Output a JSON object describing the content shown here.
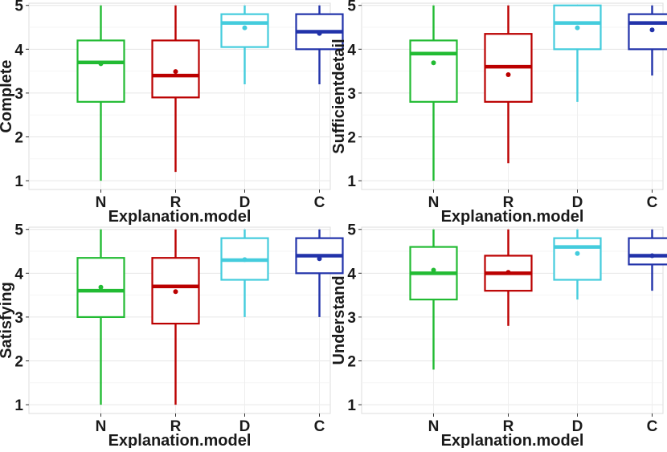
{
  "chart_data": [
    {
      "type": "box",
      "title": "",
      "xlabel": "Explanation.model",
      "ylabel": "Complete",
      "ylim": [
        0.8,
        5.05
      ],
      "yticks": [
        1,
        2,
        3,
        4,
        5
      ],
      "grid": true,
      "categories": [
        "N",
        "R",
        "D",
        "C"
      ],
      "colors": [
        "#22bb33",
        "#bb0000",
        "#44ccdd",
        "#2233aa"
      ],
      "boxes": [
        {
          "whisker_low": 1.0,
          "q1": 2.8,
          "median": 3.7,
          "q3": 4.2,
          "whisker_high": 5.0,
          "mean": 3.67
        },
        {
          "whisker_low": 1.2,
          "q1": 2.9,
          "median": 3.4,
          "q3": 4.2,
          "whisker_high": 5.0,
          "mean": 3.49
        },
        {
          "whisker_low": 3.2,
          "q1": 4.05,
          "median": 4.6,
          "q3": 4.8,
          "whisker_high": 5.0,
          "mean": 4.49
        },
        {
          "whisker_low": 3.2,
          "q1": 4.0,
          "median": 4.4,
          "q3": 4.8,
          "whisker_high": 5.0,
          "mean": 4.36
        }
      ]
    },
    {
      "type": "box",
      "title": "",
      "xlabel": "Explanation.model",
      "ylabel": "Sufficientdetail",
      "ylim": [
        0.8,
        5.05
      ],
      "yticks": [
        1,
        2,
        3,
        4,
        5
      ],
      "grid": true,
      "categories": [
        "N",
        "R",
        "D",
        "C"
      ],
      "colors": [
        "#22bb33",
        "#bb0000",
        "#44ccdd",
        "#2233aa"
      ],
      "boxes": [
        {
          "whisker_low": 1.0,
          "q1": 2.8,
          "median": 3.9,
          "q3": 4.2,
          "whisker_high": 5.0,
          "mean": 3.69
        },
        {
          "whisker_low": 1.4,
          "q1": 2.8,
          "median": 3.6,
          "q3": 4.35,
          "whisker_high": 5.0,
          "mean": 3.42
        },
        {
          "whisker_low": 2.8,
          "q1": 4.0,
          "median": 4.6,
          "q3": 5.0,
          "whisker_high": 5.0,
          "mean": 4.49
        },
        {
          "whisker_low": 3.4,
          "q1": 4.0,
          "median": 4.6,
          "q3": 4.8,
          "whisker_high": 5.0,
          "mean": 4.44
        }
      ]
    },
    {
      "type": "box",
      "title": "",
      "xlabel": "Explanation.model",
      "ylabel": "Satisfying",
      "ylim": [
        0.8,
        5.05
      ],
      "yticks": [
        1,
        2,
        3,
        4,
        5
      ],
      "grid": true,
      "categories": [
        "N",
        "R",
        "D",
        "C"
      ],
      "colors": [
        "#22bb33",
        "#bb0000",
        "#44ccdd",
        "#2233aa"
      ],
      "boxes": [
        {
          "whisker_low": 1.0,
          "q1": 3.0,
          "median": 3.6,
          "q3": 4.35,
          "whisker_high": 5.0,
          "mean": 3.68
        },
        {
          "whisker_low": 1.0,
          "q1": 2.85,
          "median": 3.7,
          "q3": 4.35,
          "whisker_high": 5.0,
          "mean": 3.58
        },
        {
          "whisker_low": 3.0,
          "q1": 3.85,
          "median": 4.3,
          "q3": 4.8,
          "whisker_high": 5.0,
          "mean": 4.31
        },
        {
          "whisker_low": 3.0,
          "q1": 4.0,
          "median": 4.4,
          "q3": 4.8,
          "whisker_high": 5.0,
          "mean": 4.33
        }
      ]
    },
    {
      "type": "box",
      "title": "",
      "xlabel": "Explanation.model",
      "ylabel": "Understand",
      "ylim": [
        0.8,
        5.05
      ],
      "yticks": [
        1,
        2,
        3,
        4,
        5
      ],
      "grid": true,
      "categories": [
        "N",
        "R",
        "D",
        "C"
      ],
      "colors": [
        "#22bb33",
        "#bb0000",
        "#44ccdd",
        "#2233aa"
      ],
      "boxes": [
        {
          "whisker_low": 1.8,
          "q1": 3.4,
          "median": 4.0,
          "q3": 4.6,
          "whisker_high": 5.0,
          "mean": 4.07
        },
        {
          "whisker_low": 2.8,
          "q1": 3.6,
          "median": 4.0,
          "q3": 4.4,
          "whisker_high": 5.0,
          "mean": 4.02
        },
        {
          "whisker_low": 3.4,
          "q1": 3.85,
          "median": 4.6,
          "q3": 4.8,
          "whisker_high": 5.0,
          "mean": 4.45
        },
        {
          "whisker_low": 3.6,
          "q1": 4.2,
          "median": 4.4,
          "q3": 4.8,
          "whisker_high": 5.0,
          "mean": 4.4
        }
      ]
    }
  ]
}
